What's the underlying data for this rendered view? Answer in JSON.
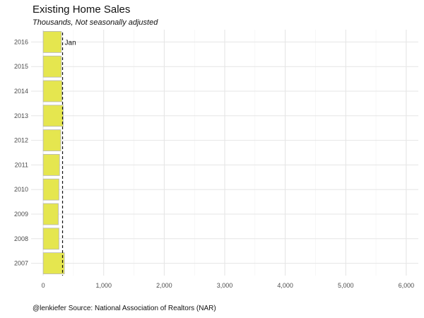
{
  "chart_data": {
    "type": "bar",
    "orientation": "horizontal",
    "title": "Existing Home Sales",
    "subtitle": "Thousands, Not seasonally adjusted",
    "caption": "@lenkiefer Source: National Association of Realtors (NAR)",
    "categories": [
      "2007",
      "2008",
      "2009",
      "2010",
      "2011",
      "2012",
      "2013",
      "2014",
      "2015",
      "2016"
    ],
    "values": [
      350,
      260,
      250,
      260,
      270,
      290,
      330,
      310,
      300,
      300
    ],
    "xlim": [
      -200,
      6200
    ],
    "xticks": [
      0,
      1000,
      2000,
      3000,
      4000,
      5000,
      6000
    ],
    "xtick_labels": [
      "0",
      "1,000",
      "2,000",
      "3,000",
      "4,000",
      "5,000",
      "6,000"
    ],
    "reference_line": {
      "value": 320,
      "style": "dashed"
    },
    "annotation": "Jan",
    "bar_color": "#e5e64f",
    "grid": true
  }
}
